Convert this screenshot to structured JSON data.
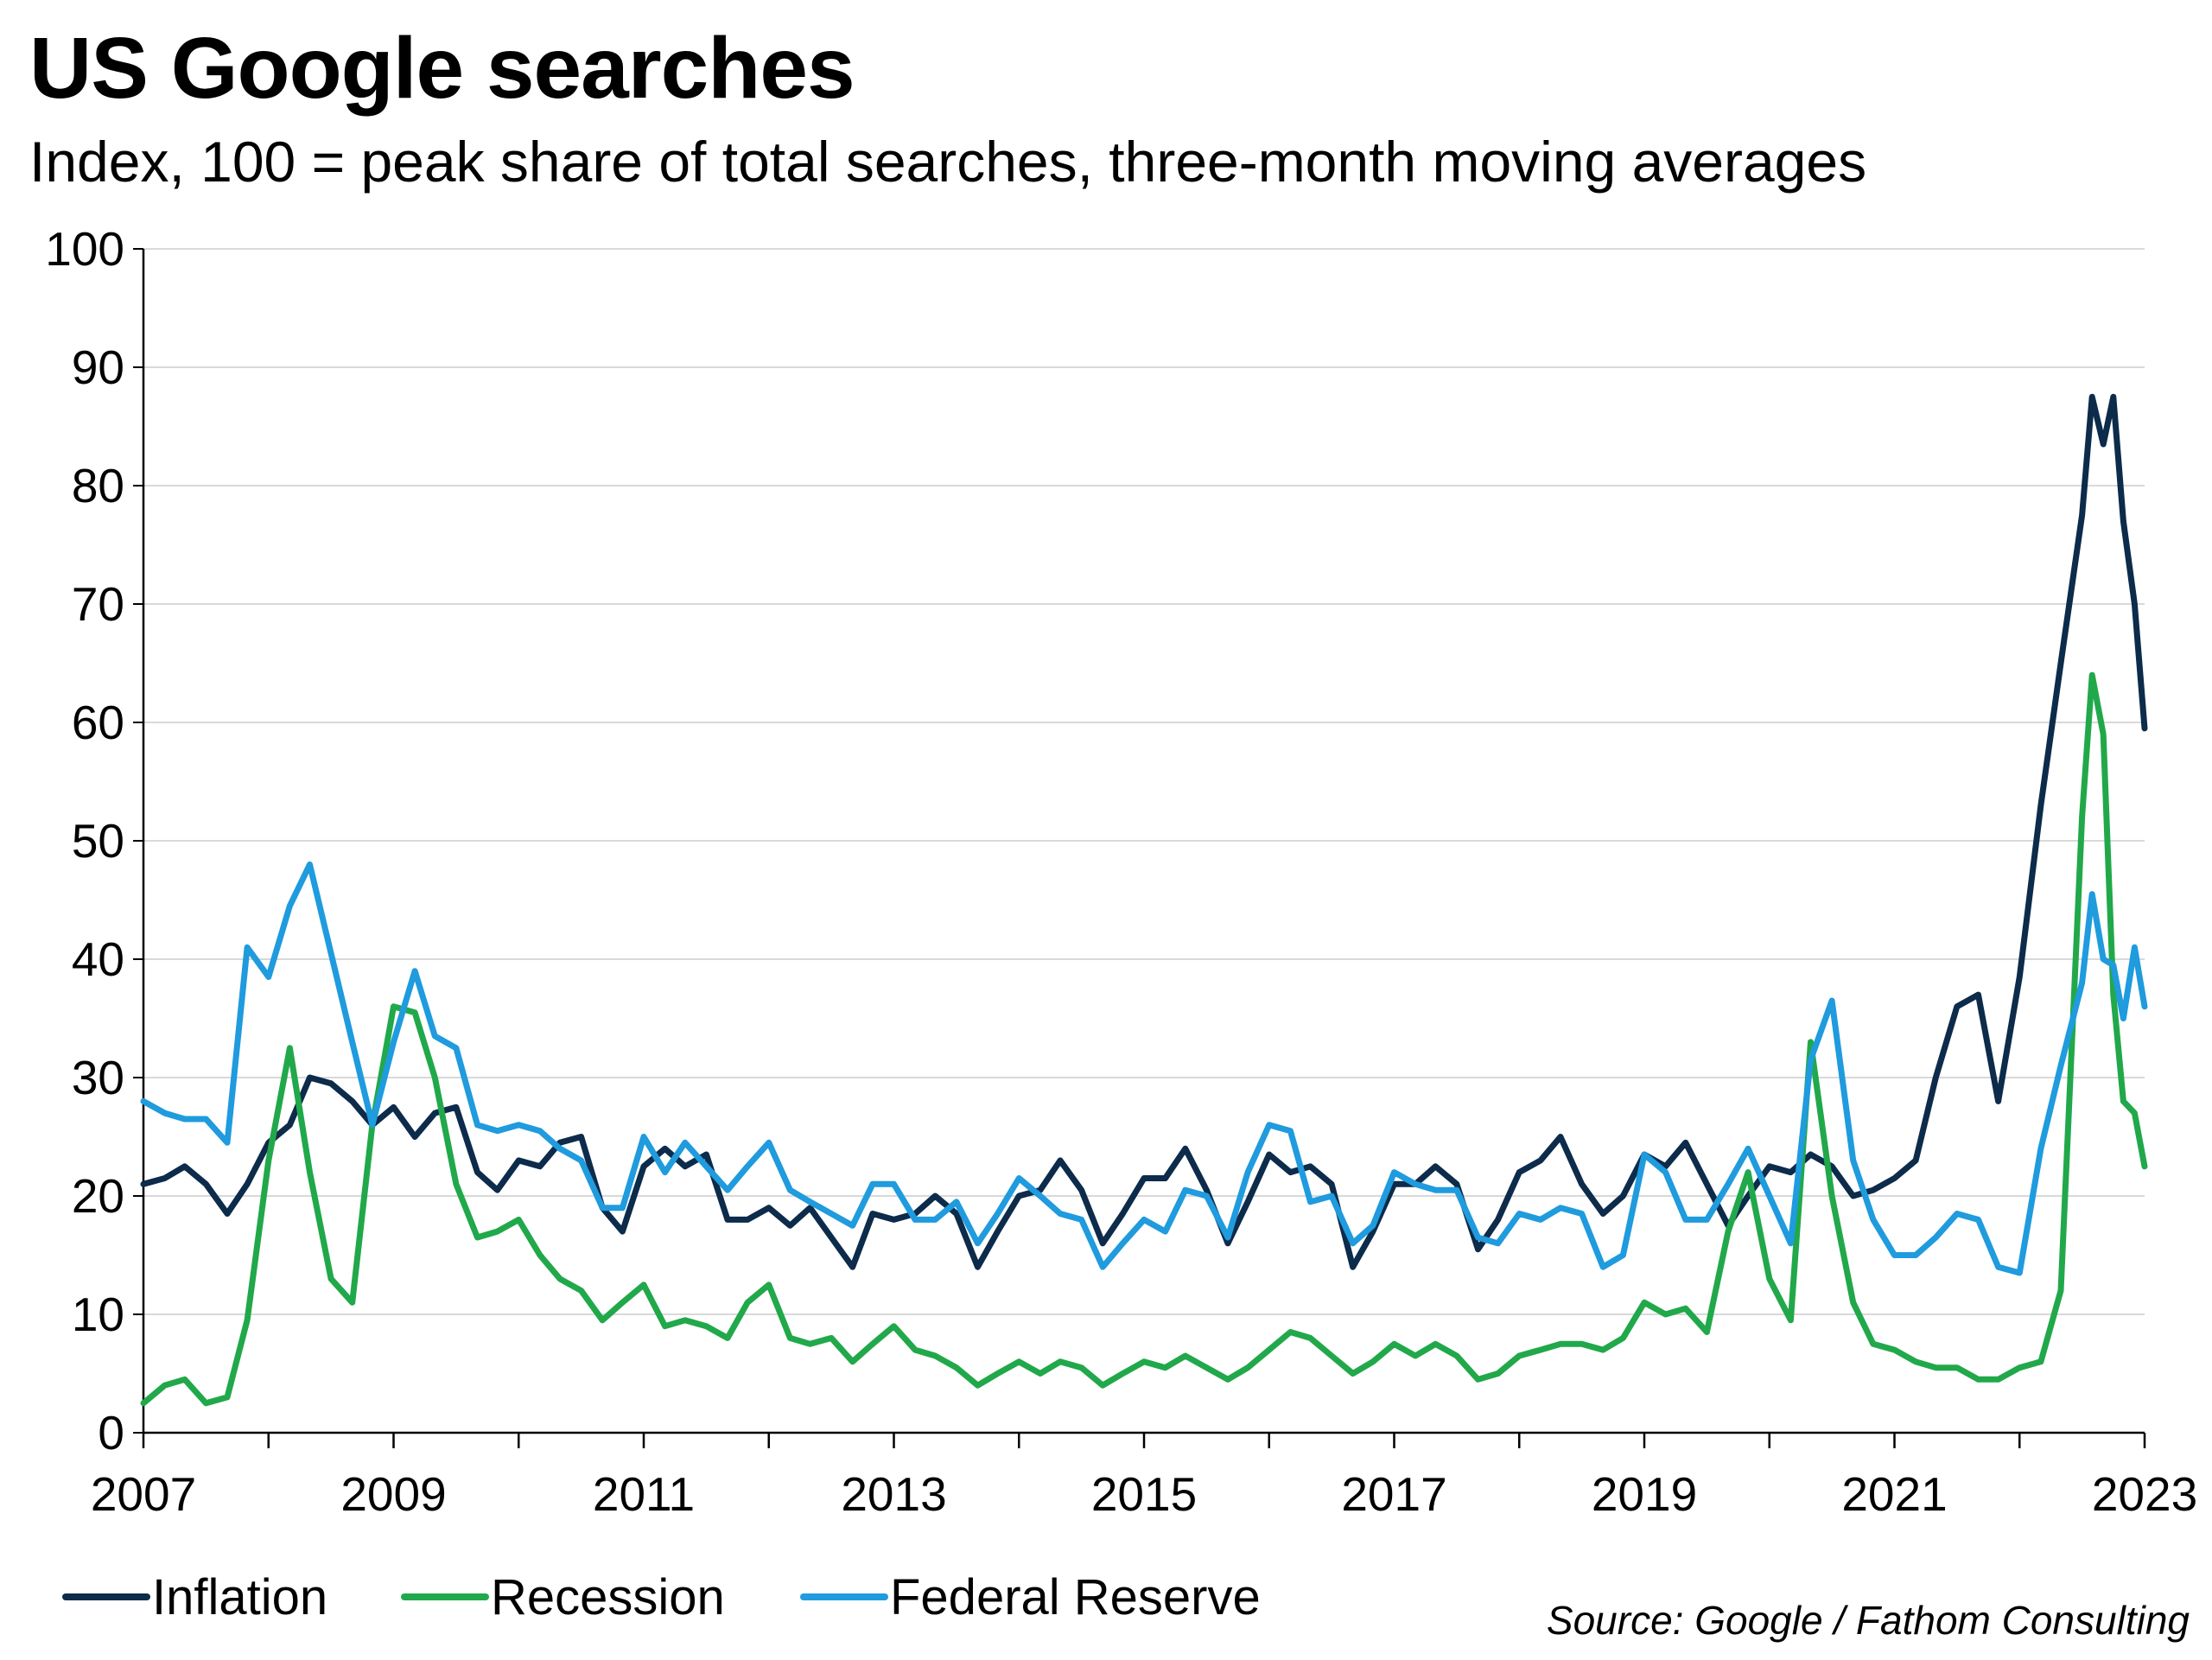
{
  "title": "US Google searches",
  "subtitle": "Index, 100 = peak share of total searches, three-month moving averages",
  "source": "Source: Google / Fathom Consulting",
  "chart_data": {
    "type": "line",
    "title": "US Google searches",
    "subtitle": "Index, 100 = peak share of total searches, three-month moving averages",
    "xlabel": "",
    "ylabel": "",
    "xlim": [
      2007,
      2023
    ],
    "ylim": [
      0,
      100
    ],
    "yticks": [
      "0",
      "10",
      "20",
      "30",
      "40",
      "50",
      "60",
      "70",
      "80",
      "90",
      "100"
    ],
    "xticks": [
      "2007",
      "2009",
      "2011",
      "2013",
      "2015",
      "2017",
      "2019",
      "2021",
      "2023"
    ],
    "grid": "horizontal",
    "legend_position": "bottom-left",
    "series": [
      {
        "name": "Inflation",
        "color": "#0d2b4a",
        "points": [
          [
            2007.0,
            21
          ],
          [
            2007.17,
            21.5
          ],
          [
            2007.33,
            22.5
          ],
          [
            2007.5,
            21
          ],
          [
            2007.67,
            18.5
          ],
          [
            2007.83,
            21
          ],
          [
            2008.0,
            24.5
          ],
          [
            2008.17,
            26
          ],
          [
            2008.33,
            30
          ],
          [
            2008.5,
            29.5
          ],
          [
            2008.67,
            28
          ],
          [
            2008.83,
            26
          ],
          [
            2009.0,
            27.5
          ],
          [
            2009.17,
            25
          ],
          [
            2009.33,
            27
          ],
          [
            2009.5,
            27.5
          ],
          [
            2009.67,
            22
          ],
          [
            2009.83,
            20.5
          ],
          [
            2010.0,
            23
          ],
          [
            2010.17,
            22.5
          ],
          [
            2010.33,
            24.5
          ],
          [
            2010.5,
            25
          ],
          [
            2010.67,
            19
          ],
          [
            2010.83,
            17
          ],
          [
            2011.0,
            22.5
          ],
          [
            2011.17,
            24
          ],
          [
            2011.33,
            22.5
          ],
          [
            2011.5,
            23.5
          ],
          [
            2011.67,
            18
          ],
          [
            2011.83,
            18
          ],
          [
            2012.0,
            19
          ],
          [
            2012.17,
            17.5
          ],
          [
            2012.33,
            19
          ],
          [
            2012.5,
            16.5
          ],
          [
            2012.67,
            14
          ],
          [
            2012.83,
            18.5
          ],
          [
            2013.0,
            18
          ],
          [
            2013.17,
            18.5
          ],
          [
            2013.33,
            20
          ],
          [
            2013.5,
            18.5
          ],
          [
            2013.67,
            14
          ],
          [
            2013.83,
            17
          ],
          [
            2014.0,
            20
          ],
          [
            2014.17,
            20.5
          ],
          [
            2014.33,
            23
          ],
          [
            2014.5,
            20.5
          ],
          [
            2014.67,
            16
          ],
          [
            2014.83,
            18.5
          ],
          [
            2015.0,
            21.5
          ],
          [
            2015.17,
            21.5
          ],
          [
            2015.33,
            24
          ],
          [
            2015.5,
            20.5
          ],
          [
            2015.67,
            16
          ],
          [
            2015.83,
            19.5
          ],
          [
            2016.0,
            23.5
          ],
          [
            2016.17,
            22
          ],
          [
            2016.33,
            22.5
          ],
          [
            2016.5,
            21
          ],
          [
            2016.67,
            14
          ],
          [
            2016.83,
            17
          ],
          [
            2017.0,
            21
          ],
          [
            2017.17,
            21
          ],
          [
            2017.33,
            22.5
          ],
          [
            2017.5,
            21
          ],
          [
            2017.67,
            15.5
          ],
          [
            2017.83,
            18
          ],
          [
            2018.0,
            22
          ],
          [
            2018.17,
            23
          ],
          [
            2018.33,
            25
          ],
          [
            2018.5,
            21
          ],
          [
            2018.67,
            18.5
          ],
          [
            2018.83,
            20
          ],
          [
            2019.0,
            23.5
          ],
          [
            2019.17,
            22.5
          ],
          [
            2019.33,
            24.5
          ],
          [
            2019.5,
            21
          ],
          [
            2019.67,
            17.5
          ],
          [
            2019.83,
            20
          ],
          [
            2020.0,
            22.5
          ],
          [
            2020.17,
            22
          ],
          [
            2020.33,
            23.5
          ],
          [
            2020.5,
            22.5
          ],
          [
            2020.67,
            20
          ],
          [
            2020.83,
            20.5
          ],
          [
            2021.0,
            21.5
          ],
          [
            2021.17,
            23
          ],
          [
            2021.33,
            30
          ],
          [
            2021.5,
            36
          ],
          [
            2021.67,
            37
          ],
          [
            2021.83,
            28
          ],
          [
            2022.0,
            38.5
          ],
          [
            2022.17,
            53
          ],
          [
            2022.33,
            65
          ],
          [
            2022.5,
            77.5
          ],
          [
            2022.58,
            87.5
          ],
          [
            2022.67,
            83.5
          ],
          [
            2022.75,
            87.5
          ],
          [
            2022.83,
            77
          ],
          [
            2022.92,
            70
          ],
          [
            2023.0,
            59.5
          ]
        ]
      },
      {
        "name": "Recession",
        "color": "#21a84a",
        "points": [
          [
            2007.0,
            2.5
          ],
          [
            2007.17,
            4
          ],
          [
            2007.33,
            4.5
          ],
          [
            2007.5,
            2.5
          ],
          [
            2007.67,
            3
          ],
          [
            2007.83,
            9.5
          ],
          [
            2008.0,
            23
          ],
          [
            2008.17,
            32.5
          ],
          [
            2008.33,
            22
          ],
          [
            2008.5,
            13
          ],
          [
            2008.67,
            11
          ],
          [
            2008.83,
            26
          ],
          [
            2009.0,
            36
          ],
          [
            2009.17,
            35.5
          ],
          [
            2009.33,
            30
          ],
          [
            2009.5,
            21
          ],
          [
            2009.67,
            16.5
          ],
          [
            2009.83,
            17
          ],
          [
            2010.0,
            18
          ],
          [
            2010.17,
            15
          ],
          [
            2010.33,
            13
          ],
          [
            2010.5,
            12
          ],
          [
            2010.67,
            9.5
          ],
          [
            2010.83,
            11
          ],
          [
            2011.0,
            12.5
          ],
          [
            2011.17,
            9
          ],
          [
            2011.33,
            9.5
          ],
          [
            2011.5,
            9
          ],
          [
            2011.67,
            8
          ],
          [
            2011.83,
            11
          ],
          [
            2012.0,
            12.5
          ],
          [
            2012.17,
            8
          ],
          [
            2012.33,
            7.5
          ],
          [
            2012.5,
            8
          ],
          [
            2012.67,
            6
          ],
          [
            2012.83,
            7.5
          ],
          [
            2013.0,
            9
          ],
          [
            2013.17,
            7
          ],
          [
            2013.33,
            6.5
          ],
          [
            2013.5,
            5.5
          ],
          [
            2013.67,
            4
          ],
          [
            2013.83,
            5
          ],
          [
            2014.0,
            6
          ],
          [
            2014.17,
            5
          ],
          [
            2014.33,
            6
          ],
          [
            2014.5,
            5.5
          ],
          [
            2014.67,
            4
          ],
          [
            2014.83,
            5
          ],
          [
            2015.0,
            6
          ],
          [
            2015.17,
            5.5
          ],
          [
            2015.33,
            6.5
          ],
          [
            2015.5,
            5.5
          ],
          [
            2015.67,
            4.5
          ],
          [
            2015.83,
            5.5
          ],
          [
            2016.0,
            7
          ],
          [
            2016.17,
            8.5
          ],
          [
            2016.33,
            8
          ],
          [
            2016.5,
            6.5
          ],
          [
            2016.67,
            5
          ],
          [
            2016.83,
            6
          ],
          [
            2017.0,
            7.5
          ],
          [
            2017.17,
            6.5
          ],
          [
            2017.33,
            7.5
          ],
          [
            2017.5,
            6.5
          ],
          [
            2017.67,
            4.5
          ],
          [
            2017.83,
            5
          ],
          [
            2018.0,
            6.5
          ],
          [
            2018.17,
            7
          ],
          [
            2018.33,
            7.5
          ],
          [
            2018.5,
            7.5
          ],
          [
            2018.67,
            7
          ],
          [
            2018.83,
            8
          ],
          [
            2019.0,
            11
          ],
          [
            2019.17,
            10
          ],
          [
            2019.33,
            10.5
          ],
          [
            2019.5,
            8.5
          ],
          [
            2019.67,
            17
          ],
          [
            2019.83,
            22
          ],
          [
            2020.0,
            13
          ],
          [
            2020.17,
            9.5
          ],
          [
            2020.33,
            33
          ],
          [
            2020.5,
            20
          ],
          [
            2020.67,
            11
          ],
          [
            2020.83,
            7.5
          ],
          [
            2021.0,
            7
          ],
          [
            2021.17,
            6
          ],
          [
            2021.33,
            5.5
          ],
          [
            2021.5,
            5.5
          ],
          [
            2021.67,
            4.5
          ],
          [
            2021.83,
            4.5
          ],
          [
            2022.0,
            5.5
          ],
          [
            2022.17,
            6
          ],
          [
            2022.33,
            12
          ],
          [
            2022.5,
            52
          ],
          [
            2022.58,
            64
          ],
          [
            2022.67,
            59
          ],
          [
            2022.75,
            37
          ],
          [
            2022.83,
            28
          ],
          [
            2022.92,
            27
          ],
          [
            2023.0,
            22.5
          ]
        ]
      },
      {
        "name": "Federal Reserve",
        "color": "#1f9bde",
        "points": [
          [
            2007.0,
            28
          ],
          [
            2007.17,
            27
          ],
          [
            2007.33,
            26.5
          ],
          [
            2007.5,
            26.5
          ],
          [
            2007.67,
            24.5
          ],
          [
            2007.83,
            41
          ],
          [
            2008.0,
            38.5
          ],
          [
            2008.17,
            44.5
          ],
          [
            2008.33,
            48
          ],
          [
            2008.5,
            40.5
          ],
          [
            2008.67,
            33
          ],
          [
            2008.83,
            26
          ],
          [
            2009.0,
            33
          ],
          [
            2009.17,
            39
          ],
          [
            2009.33,
            33.5
          ],
          [
            2009.5,
            32.5
          ],
          [
            2009.67,
            26
          ],
          [
            2009.83,
            25.5
          ],
          [
            2010.0,
            26
          ],
          [
            2010.17,
            25.5
          ],
          [
            2010.33,
            24
          ],
          [
            2010.5,
            23
          ],
          [
            2010.67,
            19
          ],
          [
            2010.83,
            19
          ],
          [
            2011.0,
            25
          ],
          [
            2011.17,
            22
          ],
          [
            2011.33,
            24.5
          ],
          [
            2011.5,
            22.5
          ],
          [
            2011.67,
            20.5
          ],
          [
            2011.83,
            22.5
          ],
          [
            2012.0,
            24.5
          ],
          [
            2012.17,
            20.5
          ],
          [
            2012.33,
            19.5
          ],
          [
            2012.5,
            18.5
          ],
          [
            2012.67,
            17.5
          ],
          [
            2012.83,
            21
          ],
          [
            2013.0,
            21
          ],
          [
            2013.17,
            18
          ],
          [
            2013.33,
            18
          ],
          [
            2013.5,
            19.5
          ],
          [
            2013.67,
            16
          ],
          [
            2013.83,
            18.5
          ],
          [
            2014.0,
            21.5
          ],
          [
            2014.17,
            20
          ],
          [
            2014.33,
            18.5
          ],
          [
            2014.5,
            18
          ],
          [
            2014.67,
            14
          ],
          [
            2014.83,
            16
          ],
          [
            2015.0,
            18
          ],
          [
            2015.17,
            17
          ],
          [
            2015.33,
            20.5
          ],
          [
            2015.5,
            20
          ],
          [
            2015.67,
            16.5
          ],
          [
            2015.83,
            22
          ],
          [
            2016.0,
            26
          ],
          [
            2016.17,
            25.5
          ],
          [
            2016.33,
            19.5
          ],
          [
            2016.5,
            20
          ],
          [
            2016.67,
            16
          ],
          [
            2016.83,
            17.5
          ],
          [
            2017.0,
            22
          ],
          [
            2017.17,
            21
          ],
          [
            2017.33,
            20.5
          ],
          [
            2017.5,
            20.5
          ],
          [
            2017.67,
            16.5
          ],
          [
            2017.83,
            16
          ],
          [
            2018.0,
            18.5
          ],
          [
            2018.17,
            18
          ],
          [
            2018.33,
            19
          ],
          [
            2018.5,
            18.5
          ],
          [
            2018.67,
            14
          ],
          [
            2018.83,
            15
          ],
          [
            2019.0,
            23.5
          ],
          [
            2019.17,
            22
          ],
          [
            2019.33,
            18
          ],
          [
            2019.5,
            18
          ],
          [
            2019.67,
            21
          ],
          [
            2019.83,
            24
          ],
          [
            2020.0,
            20
          ],
          [
            2020.17,
            16
          ],
          [
            2020.33,
            31.5
          ],
          [
            2020.5,
            36.5
          ],
          [
            2020.67,
            23
          ],
          [
            2020.83,
            18
          ],
          [
            2021.0,
            15
          ],
          [
            2021.17,
            15
          ],
          [
            2021.33,
            16.5
          ],
          [
            2021.5,
            18.5
          ],
          [
            2021.67,
            18
          ],
          [
            2021.83,
            14
          ],
          [
            2022.0,
            13.5
          ],
          [
            2022.17,
            24
          ],
          [
            2022.33,
            31
          ],
          [
            2022.5,
            38
          ],
          [
            2022.58,
            45.5
          ],
          [
            2022.67,
            40
          ],
          [
            2022.75,
            39.5
          ],
          [
            2022.83,
            35
          ],
          [
            2022.92,
            41
          ],
          [
            2023.0,
            36
          ]
        ]
      }
    ]
  }
}
